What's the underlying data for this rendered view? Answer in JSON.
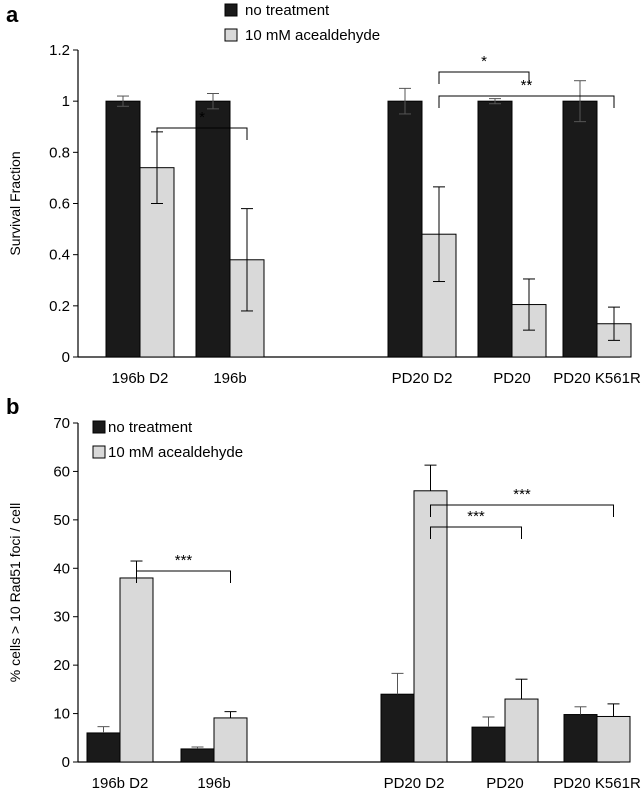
{
  "chart_data": [
    {
      "panel": "a",
      "type": "bar",
      "ylabel": "Survival Fraction",
      "xlabel": "",
      "ylim": [
        0,
        1.2
      ],
      "yticks": [
        "0",
        "0.2",
        "0.4",
        "0.6",
        "0.8",
        "1",
        "1.2"
      ],
      "ytick_values": [
        0,
        0.2,
        0.4,
        0.6,
        0.8,
        1.0,
        1.2
      ],
      "categories": [
        "196b D2",
        "196b",
        "PD20 D2",
        "PD20",
        "PD20 K561R"
      ],
      "legend_position": "top-center",
      "error_bars": "symmetric",
      "series": [
        {
          "name": "no treatment",
          "color": "#1a1a1a",
          "values": [
            1.0,
            1.0,
            1.0,
            1.0,
            1.0
          ],
          "errors": [
            0.02,
            0.03,
            0.05,
            0.01,
            0.08
          ]
        },
        {
          "name": "10 mM acealdehyde",
          "color": "#d9d9d9",
          "values": [
            0.74,
            0.38,
            0.48,
            0.205,
            0.13
          ],
          "errors": [
            0.14,
            0.2,
            0.185,
            0.1,
            0.065
          ]
        }
      ],
      "significance": [
        {
          "from": 0,
          "to": 1,
          "label": "*"
        },
        {
          "from": 2,
          "to": 3,
          "label": "*"
        },
        {
          "from": 2,
          "to": 4,
          "label": "**"
        }
      ]
    },
    {
      "panel": "b",
      "type": "bar",
      "ylabel": "% cells > 10 Rad51 foci / cell",
      "xlabel": "",
      "ylim": [
        0,
        70
      ],
      "yticks": [
        "0",
        "10",
        "20",
        "30",
        "40",
        "50",
        "60",
        "70"
      ],
      "ytick_values": [
        0,
        10,
        20,
        30,
        40,
        50,
        60,
        70
      ],
      "categories": [
        "196b D2",
        "196b",
        "PD20 D2",
        "PD20",
        "PD20 K561R"
      ],
      "legend_position": "top-left",
      "error_bars": "upper",
      "series": [
        {
          "name": "no treatment",
          "color": "#1a1a1a",
          "values": [
            6,
            2.7,
            14,
            7.2,
            9.8
          ],
          "errors": [
            1.3,
            0.4,
            4.3,
            2.1,
            1.6
          ]
        },
        {
          "name": "10 mM acealdehyde",
          "color": "#d9d9d9",
          "values": [
            38,
            9.1,
            56,
            13,
            9.4
          ],
          "errors": [
            3.5,
            1.3,
            5.3,
            4.1,
            2.6
          ]
        }
      ],
      "significance": [
        {
          "from": 0,
          "to": 1,
          "label": "***"
        },
        {
          "from": 2,
          "to": 3,
          "label": "***"
        },
        {
          "from": 2,
          "to": 4,
          "label": "***"
        }
      ]
    }
  ]
}
